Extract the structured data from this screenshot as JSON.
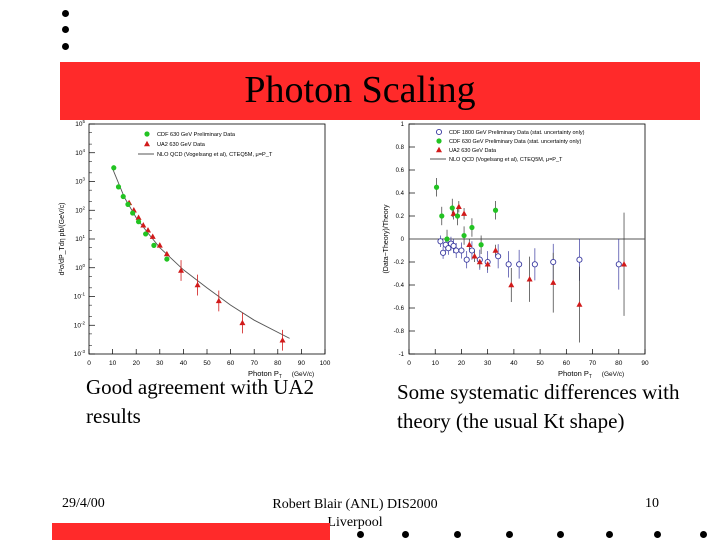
{
  "slide": {
    "title": "Photon Scaling",
    "caption_left": "Good agreement with UA2 results",
    "caption_right": "Some systematic differences with theory (the usual Kt shape)",
    "footer_date": "29/4/00",
    "footer_author": "Robert Blair (ANL) DIS2000 Liverpool",
    "footer_page": "10",
    "band_color": "#ff2a2a"
  },
  "chart_data": [
    {
      "type": "scatter",
      "title": "",
      "xlabel": "Photon P",
      "xlabel_sub": "T",
      "xunit": "(GeV/c)",
      "ylabel": "d²σ/dP_Tdη   pb/(GeV/c)",
      "yscale": "log",
      "xlim": [
        0,
        100
      ],
      "ylim": [
        0.001,
        100000.0
      ],
      "x_ticks": [
        0,
        10,
        20,
        30,
        40,
        50,
        60,
        70,
        80,
        90,
        100
      ],
      "y_tick_exponents": [
        -3,
        -2,
        -1,
        0,
        1,
        2,
        3,
        4,
        5
      ],
      "legend": [
        "CDF 630 GeV Preliminary Data",
        "UA2 630 GeV Data",
        "NLO QCD (Vogelsang et al), CTEQ5M, μ=P_T"
      ],
      "legend_position": "top-left",
      "series": [
        {
          "name": "CDF 630 GeV Preliminary Data",
          "marker": "circle",
          "color": "#22c322",
          "points": [
            [
              10.5,
              3000
            ],
            [
              12.5,
              650
            ],
            [
              14.5,
              300
            ],
            [
              16.5,
              160
            ],
            [
              18.5,
              80
            ],
            [
              21,
              40
            ],
            [
              24,
              15
            ],
            [
              27.5,
              6
            ],
            [
              33,
              2
            ]
          ]
        },
        {
          "name": "UA2 630 GeV Data",
          "marker": "triangle",
          "color": "#d11a1a",
          "points": [
            [
              17,
              180
            ],
            [
              19,
              100
            ],
            [
              21,
              55
            ],
            [
              23,
              30
            ],
            [
              25,
              20
            ],
            [
              27,
              12
            ],
            [
              30,
              6
            ],
            [
              33,
              3
            ],
            [
              39,
              0.8
            ],
            [
              46,
              0.25
            ],
            [
              55,
              0.07
            ],
            [
              65,
              0.012
            ],
            [
              82,
              0.003
            ]
          ]
        },
        {
          "name": "NLO QCD (Vogelsang et al), CTEQ5M, μ=P_T",
          "marker": "line",
          "color": "#555555",
          "points": [
            [
              10,
              2800
            ],
            [
              15,
              280
            ],
            [
              20,
              55
            ],
            [
              25,
              16
            ],
            [
              30,
              5
            ],
            [
              40,
              0.85
            ],
            [
              50,
              0.2
            ],
            [
              60,
              0.05
            ],
            [
              70,
              0.015
            ],
            [
              85,
              0.0035
            ]
          ]
        }
      ]
    },
    {
      "type": "scatter",
      "title": "",
      "xlabel": "Photon P",
      "xlabel_sub": "T",
      "xunit": "(GeV/c)",
      "ylabel": "(Data−Theory)/Theory",
      "xlim": [
        0,
        90
      ],
      "ylim": [
        -1,
        1
      ],
      "x_ticks": [
        0,
        10,
        20,
        30,
        40,
        50,
        60,
        70,
        80,
        90
      ],
      "y_ticks": [
        -1,
        -0.8,
        -0.6,
        -0.4,
        -0.2,
        0,
        0.2,
        0.4,
        0.6,
        0.8,
        1
      ],
      "legend": [
        "CDF 1800 GeV Preliminary Data (stat. uncertainty only)",
        "CDF 630 GeV Preliminary Data (stat. uncertainty only)",
        "UA2 630 GeV Data",
        "NLO QCD (Vogelsang et al), CTEQ5M, μ=P_T"
      ],
      "legend_position": "top-left",
      "series": [
        {
          "name": "CDF 1800 GeV Preliminary Data (stat. uncertainty only)",
          "marker": "open-circle",
          "color": "#3a3aa0",
          "points": [
            [
              12,
              -0.02
            ],
            [
              13,
              -0.12
            ],
            [
              14,
              -0.05
            ],
            [
              15,
              -0.08
            ],
            [
              16,
              -0.04
            ],
            [
              17,
              -0.06
            ],
            [
              18,
              -0.1
            ],
            [
              20,
              -0.1
            ],
            [
              22,
              -0.18
            ],
            [
              24,
              -0.1
            ],
            [
              27,
              -0.18
            ],
            [
              30,
              -0.2
            ],
            [
              34,
              -0.15
            ],
            [
              38,
              -0.22
            ],
            [
              42,
              -0.22
            ],
            [
              48,
              -0.22
            ],
            [
              55,
              -0.2
            ],
            [
              65,
              -0.18
            ],
            [
              80,
              -0.22
            ]
          ]
        },
        {
          "name": "CDF 630 GeV Preliminary Data (stat. uncertainty only)",
          "marker": "circle",
          "color": "#22c322",
          "points": [
            [
              10.5,
              0.45
            ],
            [
              12.5,
              0.2
            ],
            [
              14.5,
              0.0
            ],
            [
              16.5,
              0.27
            ],
            [
              18.5,
              0.2
            ],
            [
              21,
              0.03
            ],
            [
              24,
              0.1
            ],
            [
              27.5,
              -0.05
            ],
            [
              33,
              0.25
            ]
          ]
        },
        {
          "name": "UA2 630 GeV Data",
          "marker": "triangle",
          "color": "#d11a1a",
          "points": [
            [
              17,
              0.22
            ],
            [
              19,
              0.28
            ],
            [
              21,
              0.22
            ],
            [
              23,
              -0.05
            ],
            [
              25,
              -0.15
            ],
            [
              27,
              -0.2
            ],
            [
              30,
              -0.22
            ],
            [
              33,
              -0.1
            ],
            [
              39,
              -0.4
            ],
            [
              46,
              -0.35
            ],
            [
              55,
              -0.38
            ],
            [
              65,
              -0.57
            ],
            [
              82,
              -0.22
            ]
          ]
        },
        {
          "name": "NLO QCD (Vogelsang et al), CTEQ5M, μ=P_T",
          "marker": "line",
          "color": "#555555",
          "points": [
            [
              0,
              0
            ],
            [
              90,
              0
            ]
          ]
        }
      ]
    }
  ]
}
